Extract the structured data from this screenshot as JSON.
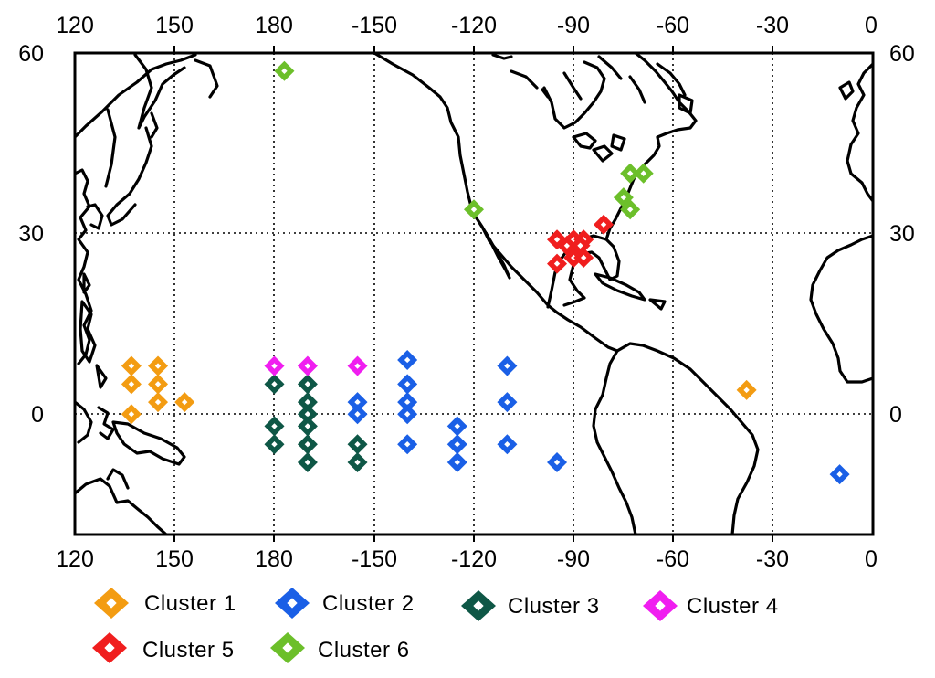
{
  "chart_data": {
    "type": "scatter",
    "x_ticks_top": [
      "120",
      "150",
      "180",
      "-150",
      "-120",
      "-90",
      "-60",
      "-30",
      "0"
    ],
    "x_ticks_bottom": [
      "120",
      "150",
      "180",
      "-150",
      "-120",
      "-90",
      "-60",
      "-30",
      "0"
    ],
    "y_ticks_left": [
      "60",
      "30",
      "0"
    ],
    "y_ticks_right": [
      "60",
      "30",
      "0"
    ],
    "xlim_lon_east": [
      120,
      360
    ],
    "ylim_lat": [
      -20,
      60
    ],
    "grid": true,
    "legend_position": "bottom",
    "series": [
      {
        "name": "Cluster 1",
        "color": "#f39c12",
        "points": [
          [
            153,
            2
          ],
          [
            145,
            8
          ],
          [
            145,
            5
          ],
          [
            145,
            2
          ],
          [
            137,
            8
          ],
          [
            137,
            5
          ],
          [
            137,
            0
          ],
          [
            322,
            4
          ]
        ]
      },
      {
        "name": "Cluster 2",
        "color": "#1a5fe6",
        "points": [
          [
            -140,
            9
          ],
          [
            -140,
            5
          ],
          [
            -140,
            2
          ],
          [
            -140,
            0
          ],
          [
            -140,
            -5
          ],
          [
            -155,
            2
          ],
          [
            -155,
            0
          ],
          [
            -125,
            -2
          ],
          [
            -125,
            -5
          ],
          [
            -125,
            -8
          ],
          [
            -110,
            8
          ],
          [
            -110,
            2
          ],
          [
            -110,
            -5
          ],
          [
            -95,
            -8
          ],
          [
            -10,
            -10
          ]
        ]
      },
      {
        "name": "Cluster 3",
        "color": "#0e5746",
        "points": [
          [
            180,
            5
          ],
          [
            180,
            -2
          ],
          [
            180,
            -5
          ],
          [
            -170,
            5
          ],
          [
            -170,
            2
          ],
          [
            -170,
            0
          ],
          [
            -170,
            -2
          ],
          [
            -170,
            -5
          ],
          [
            -170,
            -8
          ],
          [
            -155,
            -5
          ],
          [
            -155,
            -8
          ]
        ]
      },
      {
        "name": "Cluster 4",
        "color": "#f01ef0",
        "points": [
          [
            180,
            8
          ],
          [
            -170,
            8
          ],
          [
            -155,
            8
          ]
        ]
      },
      {
        "name": "Cluster 5",
        "color": "#f01e1e",
        "points": [
          [
            -95,
            29
          ],
          [
            -95,
            25
          ],
          [
            -92,
            28
          ],
          [
            -90,
            29
          ],
          [
            -90,
            26
          ],
          [
            -87,
            29
          ],
          [
            -87,
            26
          ],
          [
            -88,
            28
          ],
          [
            -81,
            31.5
          ]
        ]
      },
      {
        "name": "Cluster 6",
        "color": "#6cbf2a",
        "points": [
          [
            -177,
            57
          ],
          [
            -120,
            34
          ],
          [
            -73,
            40
          ],
          [
            -69,
            40
          ],
          [
            -75,
            36
          ],
          [
            -73,
            34
          ]
        ]
      }
    ]
  },
  "legend": {
    "items": [
      {
        "label": "Cluster 1",
        "color": "#f39c12"
      },
      {
        "label": "Cluster 2",
        "color": "#1a5fe6"
      },
      {
        "label": "Cluster 3",
        "color": "#0e5746"
      },
      {
        "label": "Cluster 4",
        "color": "#f01ef0"
      },
      {
        "label": "Cluster 5",
        "color": "#f01e1e"
      },
      {
        "label": "Cluster 6",
        "color": "#6cbf2a"
      }
    ]
  }
}
